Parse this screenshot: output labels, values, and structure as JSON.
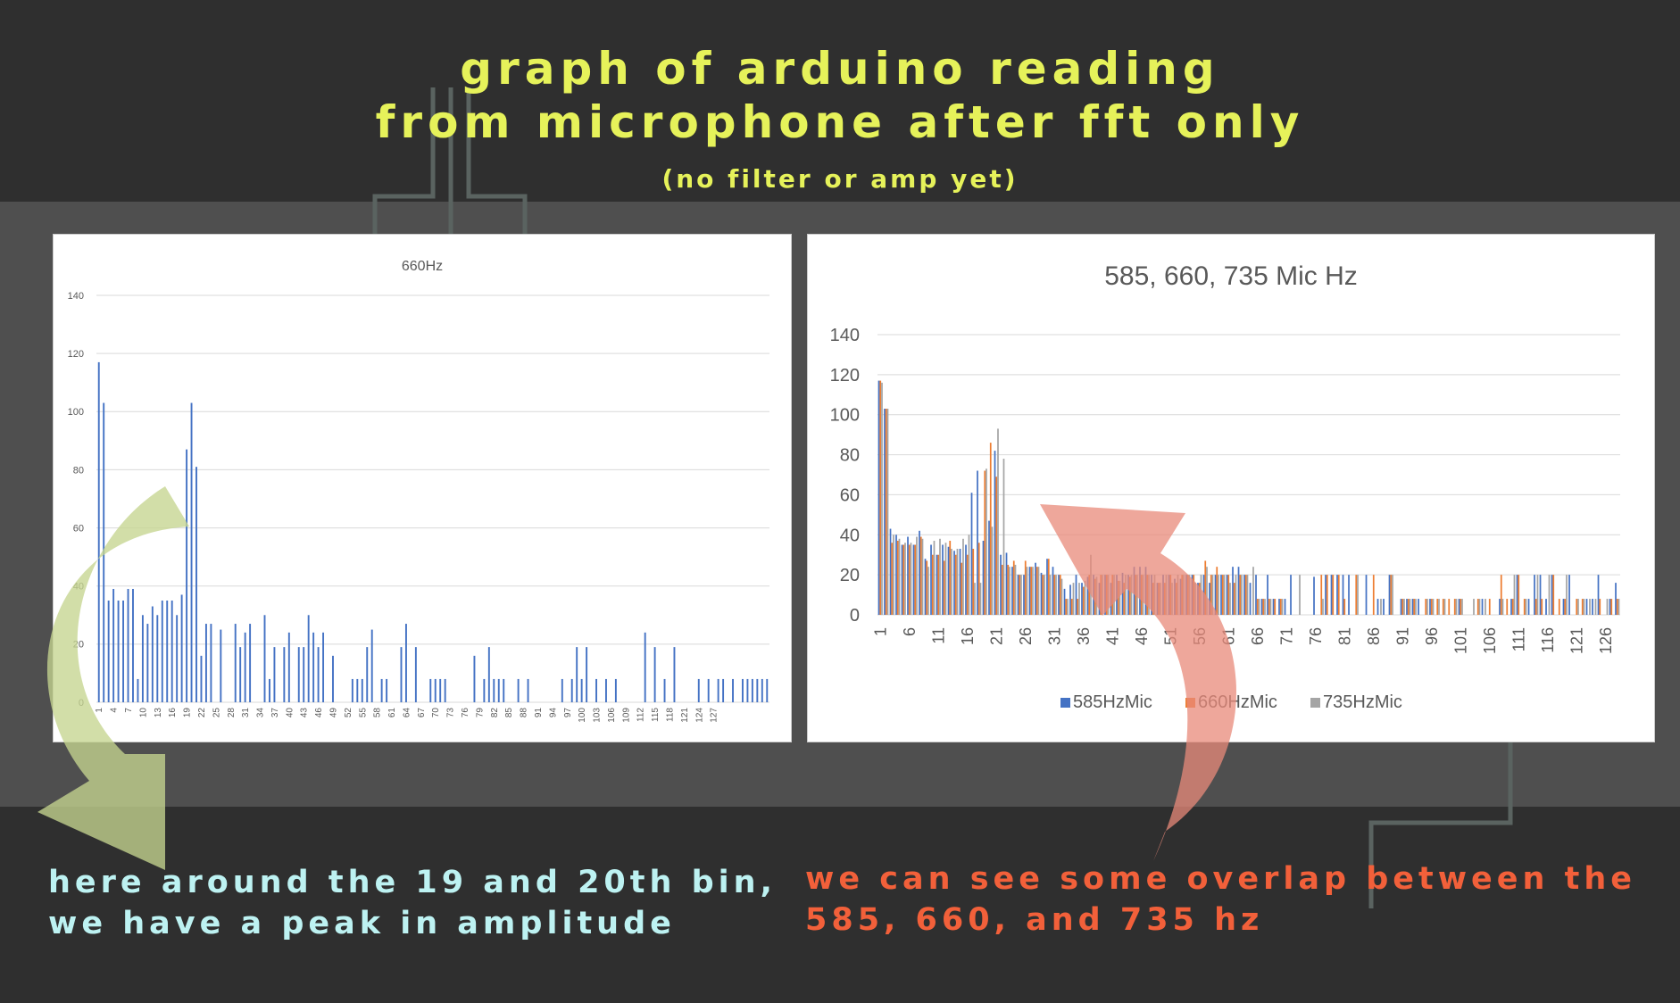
{
  "slide": {
    "title_line1": "graph of arduino reading",
    "title_line2": "from microphone after fft only",
    "subtitle": "(no filter or amp yet)",
    "note_left_line1": "here around the 19 and 20th bin,",
    "note_left_line2": "we have a peak in amplitude",
    "note_right_line1": "we can see some overlap between the",
    "note_right_line2": "585, 660, and 735 hz",
    "colors": {
      "background": "#2f2f2f",
      "band": "#4f4f4f",
      "title": "#e6f25a",
      "note_left": "#bdf2f2",
      "note_right": "#f2603a",
      "arrow_left": "#c5d58f",
      "arrow_right": "#e88a7a"
    }
  },
  "chart_data": [
    {
      "type": "bar",
      "title": "660Hz",
      "ylim": [
        0,
        140
      ],
      "yticks": [
        "0",
        "20",
        "40",
        "60",
        "80",
        "100",
        "120",
        "140"
      ],
      "xticklabels": [
        "1",
        "4",
        "7",
        "10",
        "13",
        "16",
        "19",
        "22",
        "25",
        "28",
        "31",
        "34",
        "37",
        "40",
        "43",
        "46",
        "49",
        "52",
        "55",
        "58",
        "61",
        "64",
        "67",
        "70",
        "73",
        "76",
        "79",
        "82",
        "85",
        "88",
        "91",
        "94",
        "97",
        "100",
        "103",
        "106",
        "109",
        "112",
        "115",
        "118",
        "121",
        "124",
        "127"
      ],
      "series": [
        {
          "values": [
            117,
            103,
            35,
            39,
            35,
            35,
            39,
            39,
            8,
            30,
            27,
            33,
            30,
            35,
            35,
            35,
            30,
            37,
            87,
            103,
            81,
            16,
            27,
            27,
            0,
            25,
            0,
            0,
            27,
            19,
            24,
            27,
            0,
            0,
            30,
            8,
            19,
            0,
            19,
            24,
            0,
            19,
            19,
            30,
            24,
            19,
            24,
            0,
            16,
            0,
            0,
            0,
            8,
            8,
            8,
            19,
            25,
            0,
            8,
            8,
            0,
            0,
            19,
            27,
            0,
            19,
            0,
            0,
            8,
            8,
            8,
            8,
            0,
            0,
            0,
            0,
            0,
            16,
            0,
            8,
            19,
            8,
            8,
            8,
            0,
            0,
            8,
            0,
            8,
            0,
            0,
            0,
            0,
            0,
            0,
            8,
            0,
            8,
            19,
            8,
            19,
            0,
            8,
            0,
            8,
            0,
            8,
            0,
            0,
            0,
            0,
            0,
            24,
            0,
            19,
            0,
            8,
            0,
            19,
            0,
            0,
            0,
            0,
            8,
            0,
            8,
            0,
            8,
            8,
            0,
            8,
            0,
            8,
            8,
            8,
            8,
            8,
            8
          ]
        }
      ]
    },
    {
      "type": "bar",
      "title": "585, 660, 735 Mic Hz",
      "ylim": [
        0,
        140
      ],
      "yticks": [
        "0",
        "20",
        "40",
        "60",
        "80",
        "100",
        "120",
        "140"
      ],
      "xticklabels": [
        "1",
        "6",
        "11",
        "16",
        "21",
        "26",
        "31",
        "36",
        "41",
        "46",
        "51",
        "56",
        "61",
        "66",
        "71",
        "76",
        "81",
        "86",
        "91",
        "96",
        "101",
        "106",
        "111",
        "116",
        "121",
        "126"
      ],
      "categories_count": 128,
      "series": [
        {
          "name": "585HzMic",
          "color": "#4472c4",
          "values": [
            117,
            103,
            43,
            40,
            35,
            39,
            35,
            42,
            28,
            35,
            30,
            35,
            34,
            32,
            33,
            35,
            61,
            72,
            37,
            47,
            82,
            30,
            31,
            24,
            20,
            20,
            24,
            26,
            21,
            28,
            24,
            20,
            13,
            15,
            20,
            16,
            19,
            20,
            16,
            20,
            16,
            20,
            21,
            20,
            24,
            24,
            24,
            20,
            16,
            20,
            20,
            18,
            18,
            20,
            20,
            16,
            20,
            16,
            20,
            20,
            20,
            24,
            24,
            20,
            16,
            20,
            8,
            20,
            8,
            8,
            8,
            20,
            0,
            0,
            0,
            19,
            0,
            20,
            20,
            20,
            20,
            20,
            0,
            0,
            20,
            0,
            8,
            8,
            20,
            0,
            8,
            8,
            8,
            8,
            0,
            8,
            0,
            0,
            0,
            0,
            8,
            0,
            0,
            0,
            8,
            0,
            0,
            8,
            0,
            8,
            20,
            0,
            8,
            20,
            20,
            8,
            20,
            0,
            8,
            20,
            0,
            0,
            8,
            8,
            20,
            0,
            8,
            16
          ]
        },
        {
          "name": "660HzMic",
          "color": "#ed7d31",
          "values": [
            117,
            103,
            36,
            37,
            35,
            35,
            35,
            39,
            27,
            30,
            30,
            27,
            37,
            30,
            26,
            30,
            33,
            36,
            72,
            86,
            69,
            25,
            25,
            27,
            20,
            27,
            24,
            24,
            20,
            28,
            20,
            20,
            8,
            8,
            8,
            14,
            20,
            18,
            20,
            20,
            20,
            17,
            16,
            19,
            20,
            20,
            20,
            16,
            16,
            16,
            20,
            16,
            20,
            20,
            20,
            16,
            27,
            20,
            24,
            20,
            20,
            16,
            20,
            20,
            0,
            8,
            8,
            8,
            8,
            8,
            0,
            0,
            0,
            0,
            0,
            0,
            20,
            20,
            20,
            20,
            8,
            0,
            20,
            0,
            0,
            20,
            0,
            0,
            20,
            0,
            8,
            8,
            8,
            0,
            8,
            8,
            8,
            8,
            8,
            8,
            8,
            0,
            0,
            8,
            0,
            8,
            0,
            20,
            8,
            8,
            20,
            8,
            0,
            8,
            8,
            0,
            20,
            8,
            8,
            0,
            8,
            8,
            0,
            0,
            8,
            0,
            8,
            8
          ]
        },
        {
          "name": "735HzMic",
          "color": "#a5a5a5",
          "values": [
            116,
            103,
            40,
            38,
            36,
            36,
            39,
            38,
            24,
            37,
            38,
            36,
            33,
            33,
            38,
            40,
            16,
            16,
            73,
            44,
            93,
            78,
            24,
            25,
            20,
            24,
            24,
            24,
            20,
            20,
            20,
            18,
            8,
            16,
            16,
            17,
            30,
            19,
            20,
            20,
            20,
            17,
            20,
            20,
            20,
            20,
            20,
            20,
            16,
            20,
            16,
            20,
            20,
            20,
            16,
            20,
            24,
            20,
            20,
            20,
            16,
            20,
            20,
            20,
            24,
            8,
            8,
            8,
            0,
            8,
            0,
            0,
            20,
            0,
            0,
            0,
            8,
            0,
            0,
            0,
            0,
            0,
            20,
            0,
            0,
            0,
            8,
            0,
            20,
            0,
            8,
            8,
            8,
            0,
            8,
            8,
            8,
            8,
            0,
            8,
            8,
            0,
            8,
            8,
            8,
            0,
            0,
            8,
            0,
            20,
            0,
            8,
            0,
            20,
            0,
            20,
            0,
            0,
            20,
            0,
            8,
            8,
            8,
            8,
            0,
            8,
            0,
            8
          ]
        }
      ],
      "legend_position": "bottom"
    }
  ]
}
